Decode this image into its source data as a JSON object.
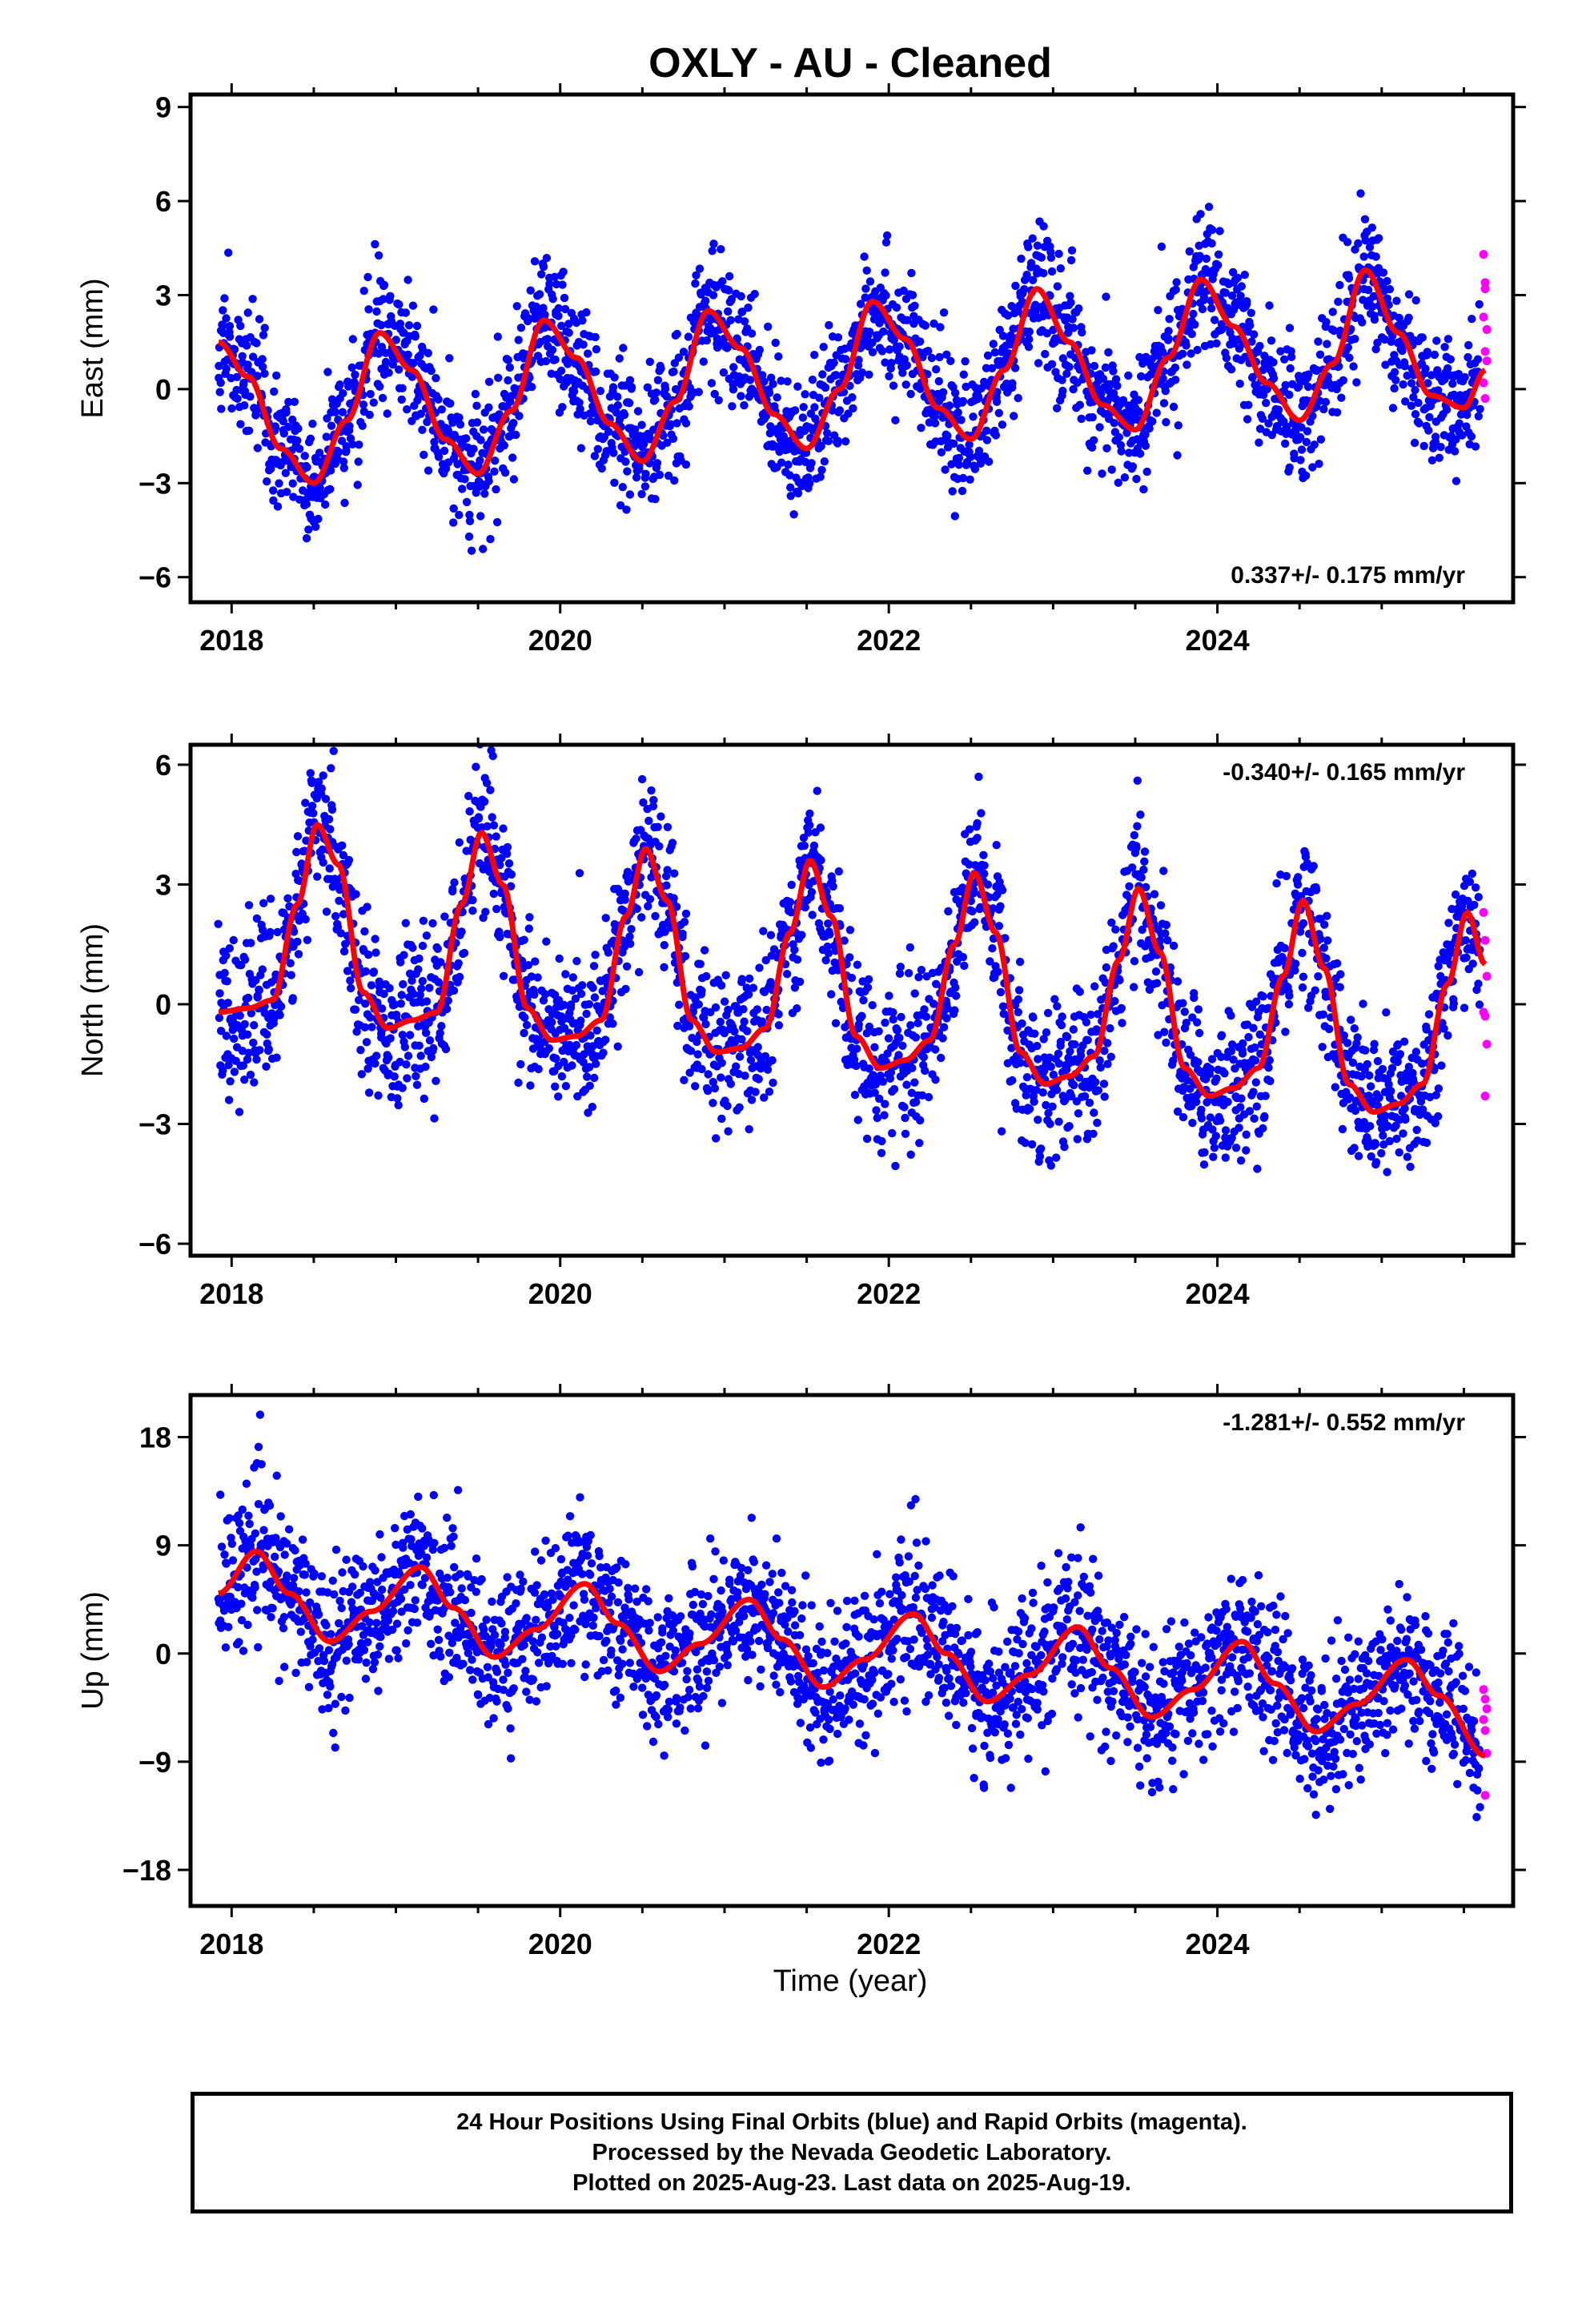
{
  "chart_data": {
    "title": "OXLY  - AU - Cleaned",
    "type": "scatter",
    "xlabel": "Time (year)",
    "xlim": [
      2017.75,
      2025.8
    ],
    "x_ticks": [
      2018,
      2020,
      2022,
      2024
    ],
    "x_tick_labels": [
      "2018",
      "2020",
      "2022",
      "2024"
    ],
    "final_orbit_color": "#0000ff",
    "rapid_orbit_color": "#ff00ff",
    "model_color": "#ff0000",
    "panels": [
      {
        "id": "east",
        "ylabel": "East (mm)",
        "ylim": [
          -6.8,
          9.4
        ],
        "y_ticks": [
          -6,
          -3,
          0,
          3,
          6,
          9
        ],
        "y_tick_labels": [
          "−6",
          "−3",
          "0",
          "3",
          "6",
          "9"
        ],
        "rate_text": "0.337+/- 0.175 mm/yr",
        "rate_position": "bottom-right",
        "model_curve": {
          "x": [
            2017.92,
            2018.1,
            2018.3,
            2018.5,
            2018.7,
            2018.9,
            2019.1,
            2019.3,
            2019.5,
            2019.7,
            2019.9,
            2020.1,
            2020.3,
            2020.5,
            2020.7,
            2020.9,
            2021.1,
            2021.3,
            2021.5,
            2021.7,
            2021.9,
            2022.1,
            2022.3,
            2022.5,
            2022.7,
            2022.9,
            2023.1,
            2023.3,
            2023.5,
            2023.7,
            2023.9,
            2024.1,
            2024.3,
            2024.5,
            2024.7,
            2024.9,
            2025.1,
            2025.3,
            2025.5,
            2025.63
          ],
          "y": [
            1.5,
            0.4,
            -1.9,
            -3.0,
            -1.0,
            1.8,
            0.6,
            -1.6,
            -2.7,
            -0.7,
            2.2,
            1.0,
            -1.1,
            -2.3,
            -0.4,
            2.5,
            1.3,
            -0.8,
            -1.9,
            0.0,
            2.8,
            1.6,
            -0.6,
            -1.6,
            0.6,
            3.2,
            1.5,
            -0.5,
            -1.3,
            1.0,
            3.5,
            2.0,
            0.2,
            -1.0,
            0.8,
            3.8,
            1.8,
            -0.2,
            -0.6,
            0.6
          ]
        },
        "rapid_points": {
          "x": [
            2025.62,
            2025.63,
            2025.63,
            2025.62,
            2025.64,
            2025.63,
            2025.64,
            2025.62,
            2025.63
          ],
          "y": [
            4.3,
            3.4,
            3.2,
            2.3,
            1.9,
            1.2,
            0.9,
            0.2,
            -0.3
          ]
        }
      },
      {
        "id": "north",
        "ylabel": "North (mm)",
        "ylim": [
          -6.3,
          6.5
        ],
        "y_ticks": [
          -6,
          -3,
          0,
          3,
          6
        ],
        "y_tick_labels": [
          "−6",
          "−3",
          "0",
          "3",
          "6"
        ],
        "rate_text": "-0.340+/- 0.165 mm/yr",
        "rate_position": "top-right",
        "model_curve": {
          "x": [
            2017.92,
            2018.1,
            2018.25,
            2018.4,
            2018.52,
            2018.65,
            2018.8,
            2018.95,
            2019.1,
            2019.25,
            2019.4,
            2019.52,
            2019.65,
            2019.8,
            2019.95,
            2020.1,
            2020.25,
            2020.4,
            2020.52,
            2020.65,
            2020.8,
            2020.95,
            2021.1,
            2021.25,
            2021.4,
            2021.52,
            2021.65,
            2021.8,
            2021.95,
            2022.1,
            2022.25,
            2022.4,
            2022.52,
            2022.65,
            2022.8,
            2022.95,
            2023.1,
            2023.25,
            2023.4,
            2023.52,
            2023.65,
            2023.8,
            2023.95,
            2024.1,
            2024.25,
            2024.4,
            2024.52,
            2024.65,
            2024.8,
            2024.95,
            2025.1,
            2025.25,
            2025.4,
            2025.52,
            2025.63
          ],
          "y": [
            -0.2,
            -0.1,
            0.1,
            2.5,
            4.5,
            3.5,
            0.3,
            -0.6,
            -0.4,
            -0.2,
            2.5,
            4.3,
            3.0,
            -0.1,
            -0.9,
            -0.8,
            -0.4,
            2.2,
            3.9,
            2.6,
            -0.4,
            -1.2,
            -1.1,
            -0.6,
            1.8,
            3.6,
            2.2,
            -0.8,
            -1.6,
            -1.4,
            -0.9,
            1.5,
            3.3,
            1.8,
            -1.2,
            -2.0,
            -1.8,
            -1.3,
            1.1,
            2.9,
            1.3,
            -1.6,
            -2.3,
            -2.1,
            -1.6,
            0.7,
            2.6,
            0.9,
            -2.0,
            -2.7,
            -2.5,
            -2.0,
            0.5,
            2.3,
            1.0
          ]
        },
        "rapid_points": {
          "x": [
            2025.62,
            2025.63,
            2025.64,
            2025.62,
            2025.63,
            2025.64,
            2025.63
          ],
          "y": [
            2.3,
            1.6,
            0.7,
            -0.2,
            -0.3,
            -1.0,
            -2.3
          ]
        }
      },
      {
        "id": "up",
        "ylabel": "Up (mm)",
        "ylim": [
          -21,
          21.5
        ],
        "y_ticks": [
          -18,
          -9,
          0,
          9,
          18
        ],
        "y_tick_labels": [
          "−18",
          "−9",
          "0",
          "9",
          "18"
        ],
        "rate_text": "-1.281+/- 0.552 mm/yr",
        "rate_position": "top-right",
        "model_curve": {
          "x": [
            2017.92,
            2018.15,
            2018.35,
            2018.6,
            2018.85,
            2019.15,
            2019.35,
            2019.6,
            2019.85,
            2020.15,
            2020.35,
            2020.6,
            2020.85,
            2021.15,
            2021.35,
            2021.6,
            2021.85,
            2022.15,
            2022.35,
            2022.6,
            2022.85,
            2023.15,
            2023.35,
            2023.6,
            2023.85,
            2024.15,
            2024.35,
            2024.6,
            2024.85,
            2025.15,
            2025.35,
            2025.63
          ],
          "y": [
            5.0,
            8.5,
            5.0,
            1.0,
            3.5,
            7.2,
            3.8,
            -0.3,
            2.0,
            5.8,
            2.5,
            -1.5,
            0.8,
            4.5,
            1.2,
            -2.8,
            -0.5,
            3.3,
            0.0,
            -4.0,
            -1.8,
            2.2,
            -1.2,
            -5.3,
            -3.0,
            1.0,
            -2.5,
            -6.5,
            -4.2,
            -0.5,
            -3.5,
            -8.5
          ]
        },
        "rapid_points": {
          "x": [
            2025.62,
            2025.63,
            2025.64,
            2025.62,
            2025.63,
            2025.64,
            2025.63
          ],
          "y": [
            -3.0,
            -3.8,
            -4.6,
            -5.5,
            -6.4,
            -8.3,
            -11.8
          ]
        }
      }
    ],
    "legend_lines": [
      "24 Hour Positions Using Final Orbits (blue) and Rapid Orbits (magenta).",
      "Processed by the Nevada Geodetic Laboratory.",
      "Plotted on 2025-Aug-23. Last data on 2025-Aug-19."
    ]
  }
}
